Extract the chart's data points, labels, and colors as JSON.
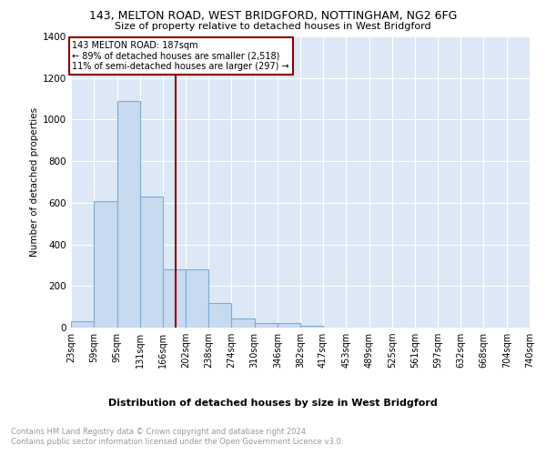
{
  "title1": "143, MELTON ROAD, WEST BRIDGFORD, NOTTINGHAM, NG2 6FG",
  "title2": "Size of property relative to detached houses in West Bridgford",
  "xlabel": "Distribution of detached houses by size in West Bridgford",
  "ylabel": "Number of detached properties",
  "bin_edges": [
    23,
    59,
    95,
    131,
    166,
    202,
    238,
    274,
    310,
    346,
    382,
    417,
    453,
    489,
    525,
    561,
    597,
    632,
    668,
    704,
    740
  ],
  "bar_heights": [
    30,
    610,
    1090,
    630,
    280,
    280,
    120,
    45,
    20,
    20,
    10,
    0,
    0,
    0,
    0,
    0,
    0,
    0,
    0,
    0
  ],
  "bar_color": "#c8daf0",
  "bar_edge_color": "#7aadd4",
  "property_size": 187,
  "red_line_color": "#8b0000",
  "annotation_line1": "143 MELTON ROAD: 187sqm",
  "annotation_line2": "← 89% of detached houses are smaller (2,518)",
  "annotation_line3": "11% of semi-detached houses are larger (297) →",
  "ylim_max": 1400,
  "yticks": [
    0,
    200,
    400,
    600,
    800,
    1000,
    1200,
    1400
  ],
  "tick_labels": [
    "23sqm",
    "59sqm",
    "95sqm",
    "131sqm",
    "166sqm",
    "202sqm",
    "238sqm",
    "274sqm",
    "310sqm",
    "346sqm",
    "382sqm",
    "417sqm",
    "453sqm",
    "489sqm",
    "525sqm",
    "561sqm",
    "597sqm",
    "632sqm",
    "668sqm",
    "704sqm",
    "740sqm"
  ],
  "footer_text1": "Contains HM Land Registry data © Crown copyright and database right 2024.",
  "footer_text2": "Contains public sector information licensed under the Open Government Licence v3.0.",
  "bg_color": "#dce8f5",
  "grid_color": "#ffffff"
}
